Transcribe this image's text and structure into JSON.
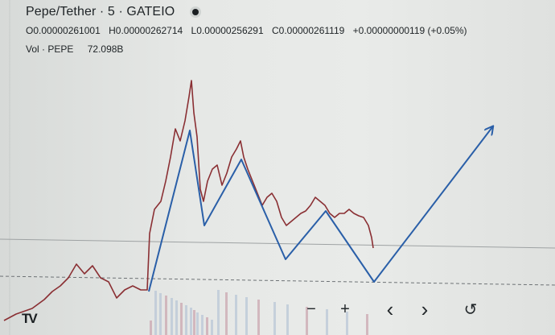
{
  "legend": {
    "title": "Pepe/Tether · 5 · GATEIO",
    "open": "O0.00000261001",
    "high": "H0.00000262714",
    "low": "L0.00000256291",
    "close": "C0.00000261119",
    "change": "+0.00000000119 (+0.05%)",
    "volume_label": "Vol · PEPE",
    "volume_value": "72.098B"
  },
  "logo": "TV",
  "controls": {
    "zoom_out": "−",
    "zoom_in": "+",
    "scroll_left": "‹",
    "scroll_right": "›",
    "reset": "↺"
  },
  "chart_data": {
    "type": "line",
    "price_path": [
      [
        5,
        398
      ],
      [
        20,
        390
      ],
      [
        40,
        383
      ],
      [
        55,
        372
      ],
      [
        65,
        362
      ],
      [
        75,
        355
      ],
      [
        85,
        345
      ],
      [
        95,
        328
      ],
      [
        105,
        340
      ],
      [
        115,
        330
      ],
      [
        125,
        345
      ],
      [
        135,
        350
      ],
      [
        145,
        370
      ],
      [
        155,
        360
      ],
      [
        165,
        355
      ],
      [
        175,
        360
      ],
      [
        183,
        360
      ],
      [
        186,
        290
      ],
      [
        192,
        260
      ],
      [
        200,
        250
      ],
      [
        206,
        225
      ],
      [
        212,
        195
      ],
      [
        218,
        160
      ],
      [
        224,
        175
      ],
      [
        230,
        150
      ],
      [
        235,
        120
      ],
      [
        238,
        100
      ],
      [
        241,
        140
      ],
      [
        245,
        170
      ],
      [
        249,
        235
      ],
      [
        253,
        250
      ],
      [
        258,
        225
      ],
      [
        264,
        210
      ],
      [
        270,
        205
      ],
      [
        276,
        230
      ],
      [
        282,
        215
      ],
      [
        288,
        195
      ],
      [
        294,
        185
      ],
      [
        299,
        175
      ],
      [
        303,
        195
      ],
      [
        308,
        210
      ],
      [
        314,
        225
      ],
      [
        320,
        240
      ],
      [
        326,
        255
      ],
      [
        332,
        245
      ],
      [
        338,
        240
      ],
      [
        344,
        250
      ],
      [
        350,
        270
      ],
      [
        356,
        280
      ],
      [
        362,
        275
      ],
      [
        368,
        270
      ],
      [
        374,
        265
      ],
      [
        380,
        262
      ],
      [
        386,
        255
      ],
      [
        392,
        245
      ],
      [
        398,
        250
      ],
      [
        404,
        255
      ],
      [
        410,
        265
      ],
      [
        416,
        270
      ],
      [
        422,
        265
      ],
      [
        428,
        265
      ],
      [
        434,
        260
      ],
      [
        440,
        265
      ],
      [
        446,
        268
      ],
      [
        452,
        270
      ],
      [
        458,
        280
      ],
      [
        462,
        295
      ],
      [
        464,
        308
      ]
    ],
    "wave_path": [
      [
        185,
        362
      ],
      [
        236,
        162
      ],
      [
        254,
        280
      ],
      [
        300,
        198
      ],
      [
        355,
        322
      ],
      [
        405,
        262
      ],
      [
        465,
        350
      ],
      [
        612,
        158
      ]
    ],
    "volume_bars": [
      186,
      192,
      198,
      205,
      212,
      218,
      224,
      230,
      236,
      240,
      244,
      250,
      256,
      262,
      270,
      280,
      292,
      305,
      320,
      340,
      356,
      380,
      405,
      430,
      455
    ]
  }
}
